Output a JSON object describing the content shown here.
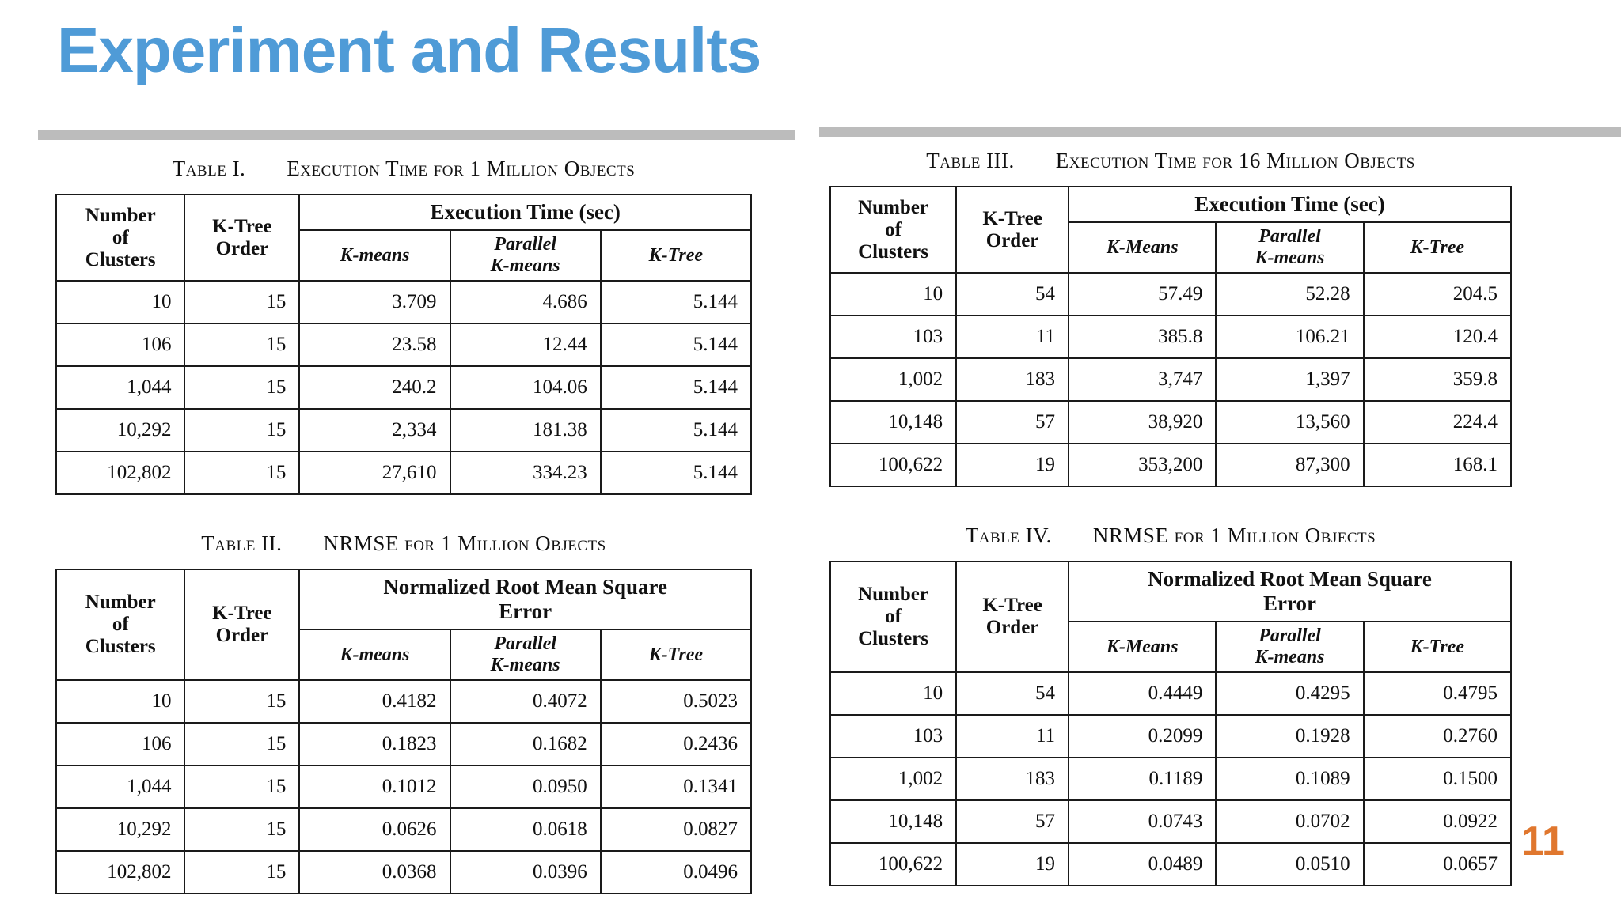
{
  "slide": {
    "title": "Experiment and Results",
    "page_number": "11",
    "title_color": "#4f9bd7",
    "page_number_color": "#e0772e",
    "divider_color": "#bcbcbc"
  },
  "tables": [
    {
      "caption_label": "Table I.",
      "caption_text": "Execution Time for 1 Million Objects",
      "col1_header": "Number\nof\nClusters",
      "col2_header": "K-Tree\nOrder",
      "group_header": "Execution Time (sec)",
      "method_headers": [
        "K-means",
        "Parallel\nK-means",
        "K-Tree"
      ],
      "rows": [
        [
          "10",
          "15",
          "3.709",
          "4.686",
          "5.144"
        ],
        [
          "106",
          "15",
          "23.58",
          "12.44",
          "5.144"
        ],
        [
          "1,044",
          "15",
          "240.2",
          "104.06",
          "5.144"
        ],
        [
          "10,292",
          "15",
          "2,334",
          "181.38",
          "5.144"
        ],
        [
          "102,802",
          "15",
          "27,610",
          "334.23",
          "5.144"
        ]
      ]
    },
    {
      "caption_label": "Table II.",
      "caption_text": "NRMSE for 1 Million Objects",
      "col1_header": "Number\nof\nClusters",
      "col2_header": "K-Tree\nOrder",
      "group_header": "Normalized Root Mean Square\nError",
      "method_headers": [
        "K-means",
        "Parallel\nK-means",
        "K-Tree"
      ],
      "rows": [
        [
          "10",
          "15",
          "0.4182",
          "0.4072",
          "0.5023"
        ],
        [
          "106",
          "15",
          "0.1823",
          "0.1682",
          "0.2436"
        ],
        [
          "1,044",
          "15",
          "0.1012",
          "0.0950",
          "0.1341"
        ],
        [
          "10,292",
          "15",
          "0.0626",
          "0.0618",
          "0.0827"
        ],
        [
          "102,802",
          "15",
          "0.0368",
          "0.0396",
          "0.0496"
        ]
      ]
    },
    {
      "caption_label": "Table III.",
      "caption_text": "Execution Time for 16 Million Objects",
      "col1_header": "Number\nof\nClusters",
      "col2_header": "K-Tree\nOrder",
      "group_header": "Execution Time (sec)",
      "method_headers": [
        "K-Means",
        "Parallel\nK-means",
        "K-Tree"
      ],
      "rows": [
        [
          "10",
          "54",
          "57.49",
          "52.28",
          "204.5"
        ],
        [
          "103",
          "11",
          "385.8",
          "106.21",
          "120.4"
        ],
        [
          "1,002",
          "183",
          "3,747",
          "1,397",
          "359.8"
        ],
        [
          "10,148",
          "57",
          "38,920",
          "13,560",
          "224.4"
        ],
        [
          "100,622",
          "19",
          "353,200",
          "87,300",
          "168.1"
        ]
      ]
    },
    {
      "caption_label": "Table IV.",
      "caption_text": "NRMSE for 1 Million Objects",
      "col1_header": "Number\nof\nClusters",
      "col2_header": "K-Tree\nOrder",
      "group_header": "Normalized Root Mean Square\nError",
      "method_headers": [
        "K-Means",
        "Parallel\nK-means",
        "K-Tree"
      ],
      "rows": [
        [
          "10",
          "54",
          "0.4449",
          "0.4295",
          "0.4795"
        ],
        [
          "103",
          "11",
          "0.2099",
          "0.1928",
          "0.2760"
        ],
        [
          "1,002",
          "183",
          "0.1189",
          "0.1089",
          "0.1500"
        ],
        [
          "10,148",
          "57",
          "0.0743",
          "0.0702",
          "0.0922"
        ],
        [
          "100,622",
          "19",
          "0.0489",
          "0.0510",
          "0.0657"
        ]
      ]
    }
  ]
}
